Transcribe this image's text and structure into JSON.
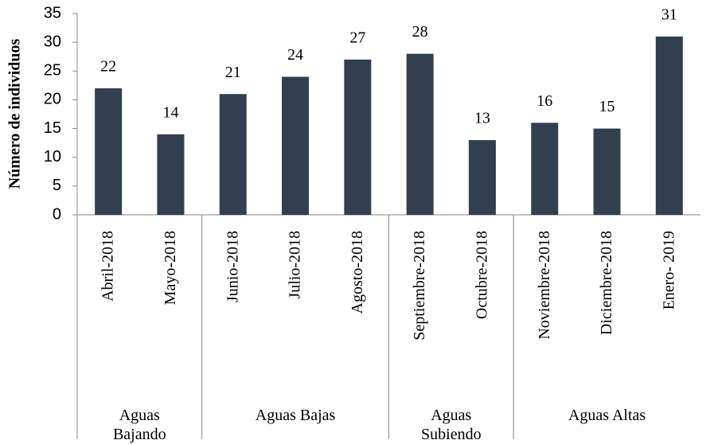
{
  "chart_data": {
    "type": "bar",
    "y_label": "Número de individuos",
    "categories": [
      "Abril-2018",
      "Mayo-2018",
      "Junio-2018",
      "Julio-2018",
      "Agosto-2018",
      "Septiembre-2018",
      "Octubre-2018",
      "Noviembre-2018",
      "Diciembre-2018",
      "Enero- 2019"
    ],
    "values": [
      22,
      14,
      21,
      24,
      27,
      28,
      13,
      16,
      15,
      31
    ],
    "color": "#323f4f",
    "groups": [
      {
        "label": "Aguas Bajando",
        "size": 2
      },
      {
        "label": "Aguas Bajas",
        "size": 3
      },
      {
        "label": "Aguas Subiendo",
        "size": 2
      },
      {
        "label": "Aguas Altas",
        "size": 3
      }
    ],
    "ylim": [
      0,
      35
    ],
    "yticks": [
      0,
      5,
      10,
      15,
      20,
      25,
      30,
      35
    ],
    "grid": false
  }
}
